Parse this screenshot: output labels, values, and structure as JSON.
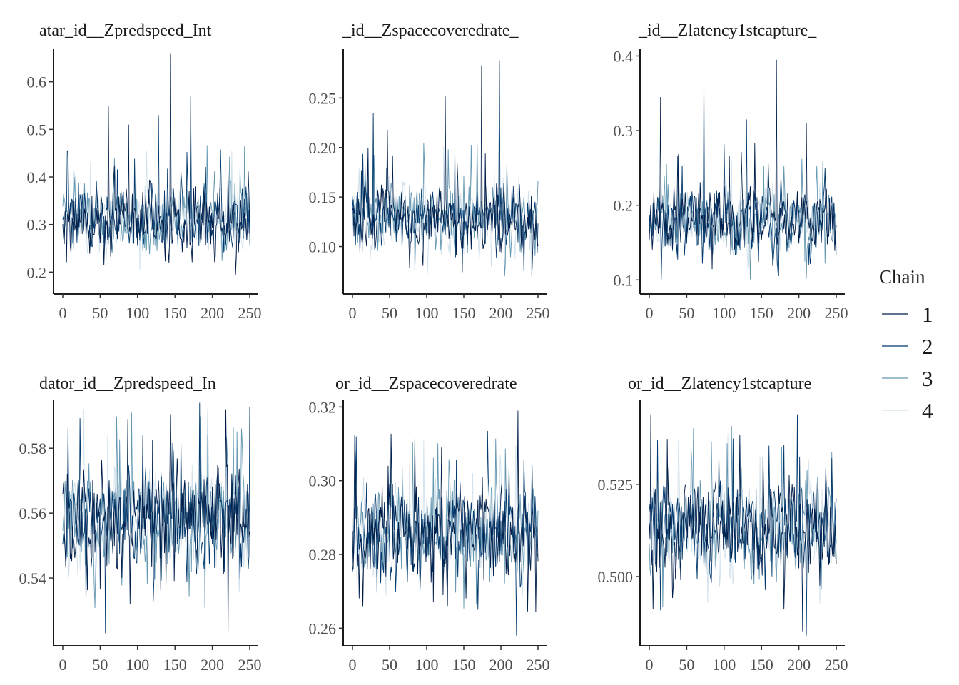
{
  "chart_data": [
    {
      "type": "line",
      "title": "atar_id__Zpredspeed_Int",
      "xlim": [
        0,
        250
      ],
      "ylim": [
        0.16,
        0.67
      ],
      "xticks": [
        0,
        50,
        100,
        150,
        200,
        250
      ],
      "xtick_labels": [
        "0",
        "50",
        "100",
        "150",
        "200",
        "250"
      ],
      "yticks": [
        0.2,
        0.3,
        0.4,
        0.5,
        0.6
      ],
      "ytick_labels": [
        "0.2",
        "0.3",
        "0.4",
        "0.5",
        "0.6"
      ],
      "center": 0.31,
      "spread": 0.045,
      "spikes": [
        [
          144,
          0.66
        ],
        [
          171,
          0.57
        ],
        [
          61,
          0.55
        ],
        [
          128,
          0.53
        ],
        [
          88,
          0.51
        ]
      ]
    },
    {
      "type": "line",
      "title": "_id__Zspacecoveredrate_",
      "xlim": [
        0,
        250
      ],
      "ylim": [
        0.055,
        0.3
      ],
      "xticks": [
        0,
        50,
        100,
        150,
        200,
        250
      ],
      "xtick_labels": [
        "0",
        "50",
        "100",
        "150",
        "200",
        "250"
      ],
      "yticks": [
        0.1,
        0.15,
        0.2,
        0.25
      ],
      "ytick_labels": [
        "0.10",
        "0.15",
        "0.20",
        "0.25"
      ],
      "center": 0.128,
      "spread": 0.022,
      "spikes": [
        [
          174,
          0.283
        ],
        [
          198,
          0.288
        ],
        [
          125,
          0.252
        ],
        [
          28,
          0.235
        ],
        [
          47,
          0.218
        ]
      ]
    },
    {
      "type": "line",
      "title": "_id__Zlatency1stcapture_",
      "xlim": [
        0,
        250
      ],
      "ylim": [
        0.085,
        0.41
      ],
      "xticks": [
        0,
        50,
        100,
        150,
        200,
        250
      ],
      "xtick_labels": [
        "0",
        "50",
        "100",
        "150",
        "200",
        "250"
      ],
      "yticks": [
        0.1,
        0.2,
        0.3,
        0.4
      ],
      "ytick_labels": [
        "0.1",
        "0.2",
        "0.3",
        "0.4"
      ],
      "center": 0.178,
      "spread": 0.03,
      "spikes": [
        [
          170,
          0.395
        ],
        [
          73,
          0.365
        ],
        [
          15,
          0.345
        ],
        [
          130,
          0.315
        ],
        [
          210,
          0.31
        ]
      ]
    },
    {
      "type": "line",
      "title": "dator_id__Zpredspeed_In",
      "xlim": [
        0,
        250
      ],
      "ylim": [
        0.52,
        0.595
      ],
      "xticks": [
        0,
        50,
        100,
        150,
        200,
        250
      ],
      "xtick_labels": [
        "0",
        "50",
        "100",
        "150",
        "200",
        "250"
      ],
      "yticks": [
        0.54,
        0.56,
        0.58
      ],
      "ytick_labels": [
        "0.54",
        "0.56",
        "0.58"
      ],
      "center": 0.558,
      "spread": 0.01,
      "spikes": [
        [
          218,
          0.592
        ],
        [
          183,
          0.594
        ],
        [
          87,
          0.589
        ],
        [
          57,
          0.523
        ],
        [
          221,
          0.523
        ]
      ]
    },
    {
      "type": "line",
      "title": "or_id__Zspacecoveredrate",
      "xlim": [
        0,
        250
      ],
      "ylim": [
        0.256,
        0.322
      ],
      "xticks": [
        0,
        50,
        100,
        150,
        200,
        250
      ],
      "xtick_labels": [
        "0",
        "50",
        "100",
        "150",
        "200",
        "250"
      ],
      "yticks": [
        0.26,
        0.28,
        0.3,
        0.32
      ],
      "ytick_labels": [
        "0.26",
        "0.28",
        "0.30",
        "0.32"
      ],
      "center": 0.286,
      "spread": 0.008,
      "spikes": [
        [
          223,
          0.319
        ],
        [
          5,
          0.312
        ],
        [
          120,
          0.309
        ],
        [
          221,
          0.258
        ]
      ]
    },
    {
      "type": "line",
      "title": "or_id__Zlatency1stcapture",
      "xlim": [
        0,
        250
      ],
      "ylim": [
        0.482,
        0.548
      ],
      "xticks": [
        0,
        50,
        100,
        150,
        200,
        250
      ],
      "xtick_labels": [
        "0",
        "50",
        "100",
        "150",
        "200",
        "250"
      ],
      "yticks": [
        0.5,
        0.525
      ],
      "ytick_labels": [
        "0.500",
        "0.525"
      ],
      "center": 0.513,
      "spread": 0.008,
      "spikes": [
        [
          2,
          0.544
        ],
        [
          198,
          0.544
        ],
        [
          205,
          0.485
        ],
        [
          210,
          0.484
        ]
      ]
    }
  ],
  "legend": {
    "title": "Chain",
    "items": [
      {
        "label": "1",
        "color": "#011f4b"
      },
      {
        "label": "2",
        "color": "#03396c"
      },
      {
        "label": "3",
        "color": "#6497b1"
      },
      {
        "label": "4",
        "color": "#d1e1ec"
      }
    ]
  }
}
